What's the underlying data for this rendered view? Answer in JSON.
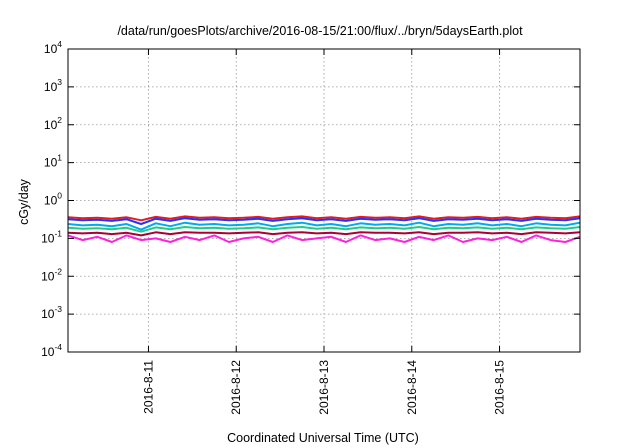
{
  "chart_data": {
    "type": "line",
    "title": "/data/run/goesPlots/archive/2016-08-15/21:00/flux/../bryn/5daysEarth.plot",
    "xlabel": "Coordinated Universal Time (UTC)",
    "ylabel": "cGy/day",
    "yscale": "log",
    "ylim": [
      0.0001,
      10000
    ],
    "xlim": [
      "2016-08-10 02:00",
      "2016-08-15 22:00"
    ],
    "grid": true,
    "legend": "none",
    "x_ticks": [
      "2016-8-11",
      "2016-8-12",
      "2016-8-13",
      "2016-8-14",
      "2016-8-15"
    ],
    "y_ticks": [
      {
        "base": "10",
        "exp": "4"
      },
      {
        "base": "10",
        "exp": "3"
      },
      {
        "base": "10",
        "exp": "2"
      },
      {
        "base": "10",
        "exp": "1"
      },
      {
        "base": "10",
        "exp": "0"
      },
      {
        "base": "10",
        "exp": "-1"
      },
      {
        "base": "10",
        "exp": "-2"
      },
      {
        "base": "10",
        "exp": "-3"
      },
      {
        "base": "10",
        "exp": "-4"
      }
    ],
    "x": [
      "2016-08-10 02:00",
      "2016-08-10 06:00",
      "2016-08-10 10:00",
      "2016-08-10 14:00",
      "2016-08-10 18:00",
      "2016-08-10 22:00",
      "2016-08-11 02:00",
      "2016-08-11 06:00",
      "2016-08-11 10:00",
      "2016-08-11 14:00",
      "2016-08-11 18:00",
      "2016-08-11 22:00",
      "2016-08-12 02:00",
      "2016-08-12 06:00",
      "2016-08-12 10:00",
      "2016-08-12 14:00",
      "2016-08-12 18:00",
      "2016-08-12 22:00",
      "2016-08-13 02:00",
      "2016-08-13 06:00",
      "2016-08-13 10:00",
      "2016-08-13 14:00",
      "2016-08-13 18:00",
      "2016-08-13 22:00",
      "2016-08-14 02:00",
      "2016-08-14 06:00",
      "2016-08-14 10:00",
      "2016-08-14 14:00",
      "2016-08-14 18:00",
      "2016-08-14 22:00",
      "2016-08-15 02:00",
      "2016-08-15 06:00",
      "2016-08-15 10:00",
      "2016-08-15 14:00",
      "2016-08-15 18:00",
      "2016-08-15 22:00"
    ],
    "series": [
      {
        "color": "#e41a1c",
        "values": [
          0.36,
          0.34,
          0.35,
          0.33,
          0.36,
          0.3,
          0.37,
          0.33,
          0.38,
          0.35,
          0.36,
          0.34,
          0.35,
          0.37,
          0.33,
          0.36,
          0.38,
          0.34,
          0.36,
          0.33,
          0.37,
          0.35,
          0.36,
          0.34,
          0.38,
          0.33,
          0.36,
          0.35,
          0.37,
          0.34,
          0.36,
          0.33,
          0.37,
          0.35,
          0.34,
          0.38
        ]
      },
      {
        "color": "#2233ff",
        "values": [
          0.32,
          0.3,
          0.31,
          0.29,
          0.32,
          0.24,
          0.33,
          0.29,
          0.34,
          0.31,
          0.32,
          0.3,
          0.31,
          0.33,
          0.29,
          0.32,
          0.34,
          0.3,
          0.32,
          0.29,
          0.33,
          0.31,
          0.32,
          0.3,
          0.34,
          0.29,
          0.32,
          0.31,
          0.33,
          0.3,
          0.32,
          0.29,
          0.33,
          0.31,
          0.3,
          0.34
        ]
      },
      {
        "color": "#00aaee",
        "values": [
          0.24,
          0.22,
          0.23,
          0.21,
          0.24,
          0.17,
          0.25,
          0.21,
          0.26,
          0.23,
          0.24,
          0.22,
          0.23,
          0.25,
          0.21,
          0.24,
          0.26,
          0.22,
          0.24,
          0.21,
          0.25,
          0.23,
          0.24,
          0.22,
          0.26,
          0.21,
          0.24,
          0.23,
          0.25,
          0.22,
          0.24,
          0.21,
          0.25,
          0.23,
          0.22,
          0.26
        ]
      },
      {
        "color": "#22cc88",
        "values": [
          0.19,
          0.18,
          0.185,
          0.175,
          0.19,
          0.15,
          0.195,
          0.175,
          0.2,
          0.185,
          0.19,
          0.18,
          0.185,
          0.195,
          0.175,
          0.19,
          0.2,
          0.18,
          0.19,
          0.175,
          0.195,
          0.185,
          0.19,
          0.18,
          0.2,
          0.175,
          0.19,
          0.185,
          0.195,
          0.18,
          0.19,
          0.175,
          0.195,
          0.185,
          0.18,
          0.2
        ]
      },
      {
        "color": "#aa0033",
        "values": [
          0.14,
          0.135,
          0.14,
          0.13,
          0.14,
          0.12,
          0.145,
          0.13,
          0.145,
          0.14,
          0.14,
          0.135,
          0.14,
          0.145,
          0.13,
          0.14,
          0.145,
          0.135,
          0.14,
          0.13,
          0.145,
          0.14,
          0.14,
          0.135,
          0.145,
          0.13,
          0.14,
          0.14,
          0.145,
          0.135,
          0.14,
          0.13,
          0.145,
          0.14,
          0.135,
          0.145
        ]
      },
      {
        "color": "#ff22dd",
        "values": [
          0.12,
          0.09,
          0.11,
          0.08,
          0.12,
          0.09,
          0.1,
          0.08,
          0.11,
          0.09,
          0.12,
          0.08,
          0.1,
          0.11,
          0.08,
          0.12,
          0.09,
          0.1,
          0.11,
          0.08,
          0.12,
          0.09,
          0.1,
          0.08,
          0.11,
          0.09,
          0.12,
          0.08,
          0.1,
          0.09,
          0.11,
          0.08,
          0.12,
          0.09,
          0.08,
          0.11
        ]
      }
    ]
  }
}
